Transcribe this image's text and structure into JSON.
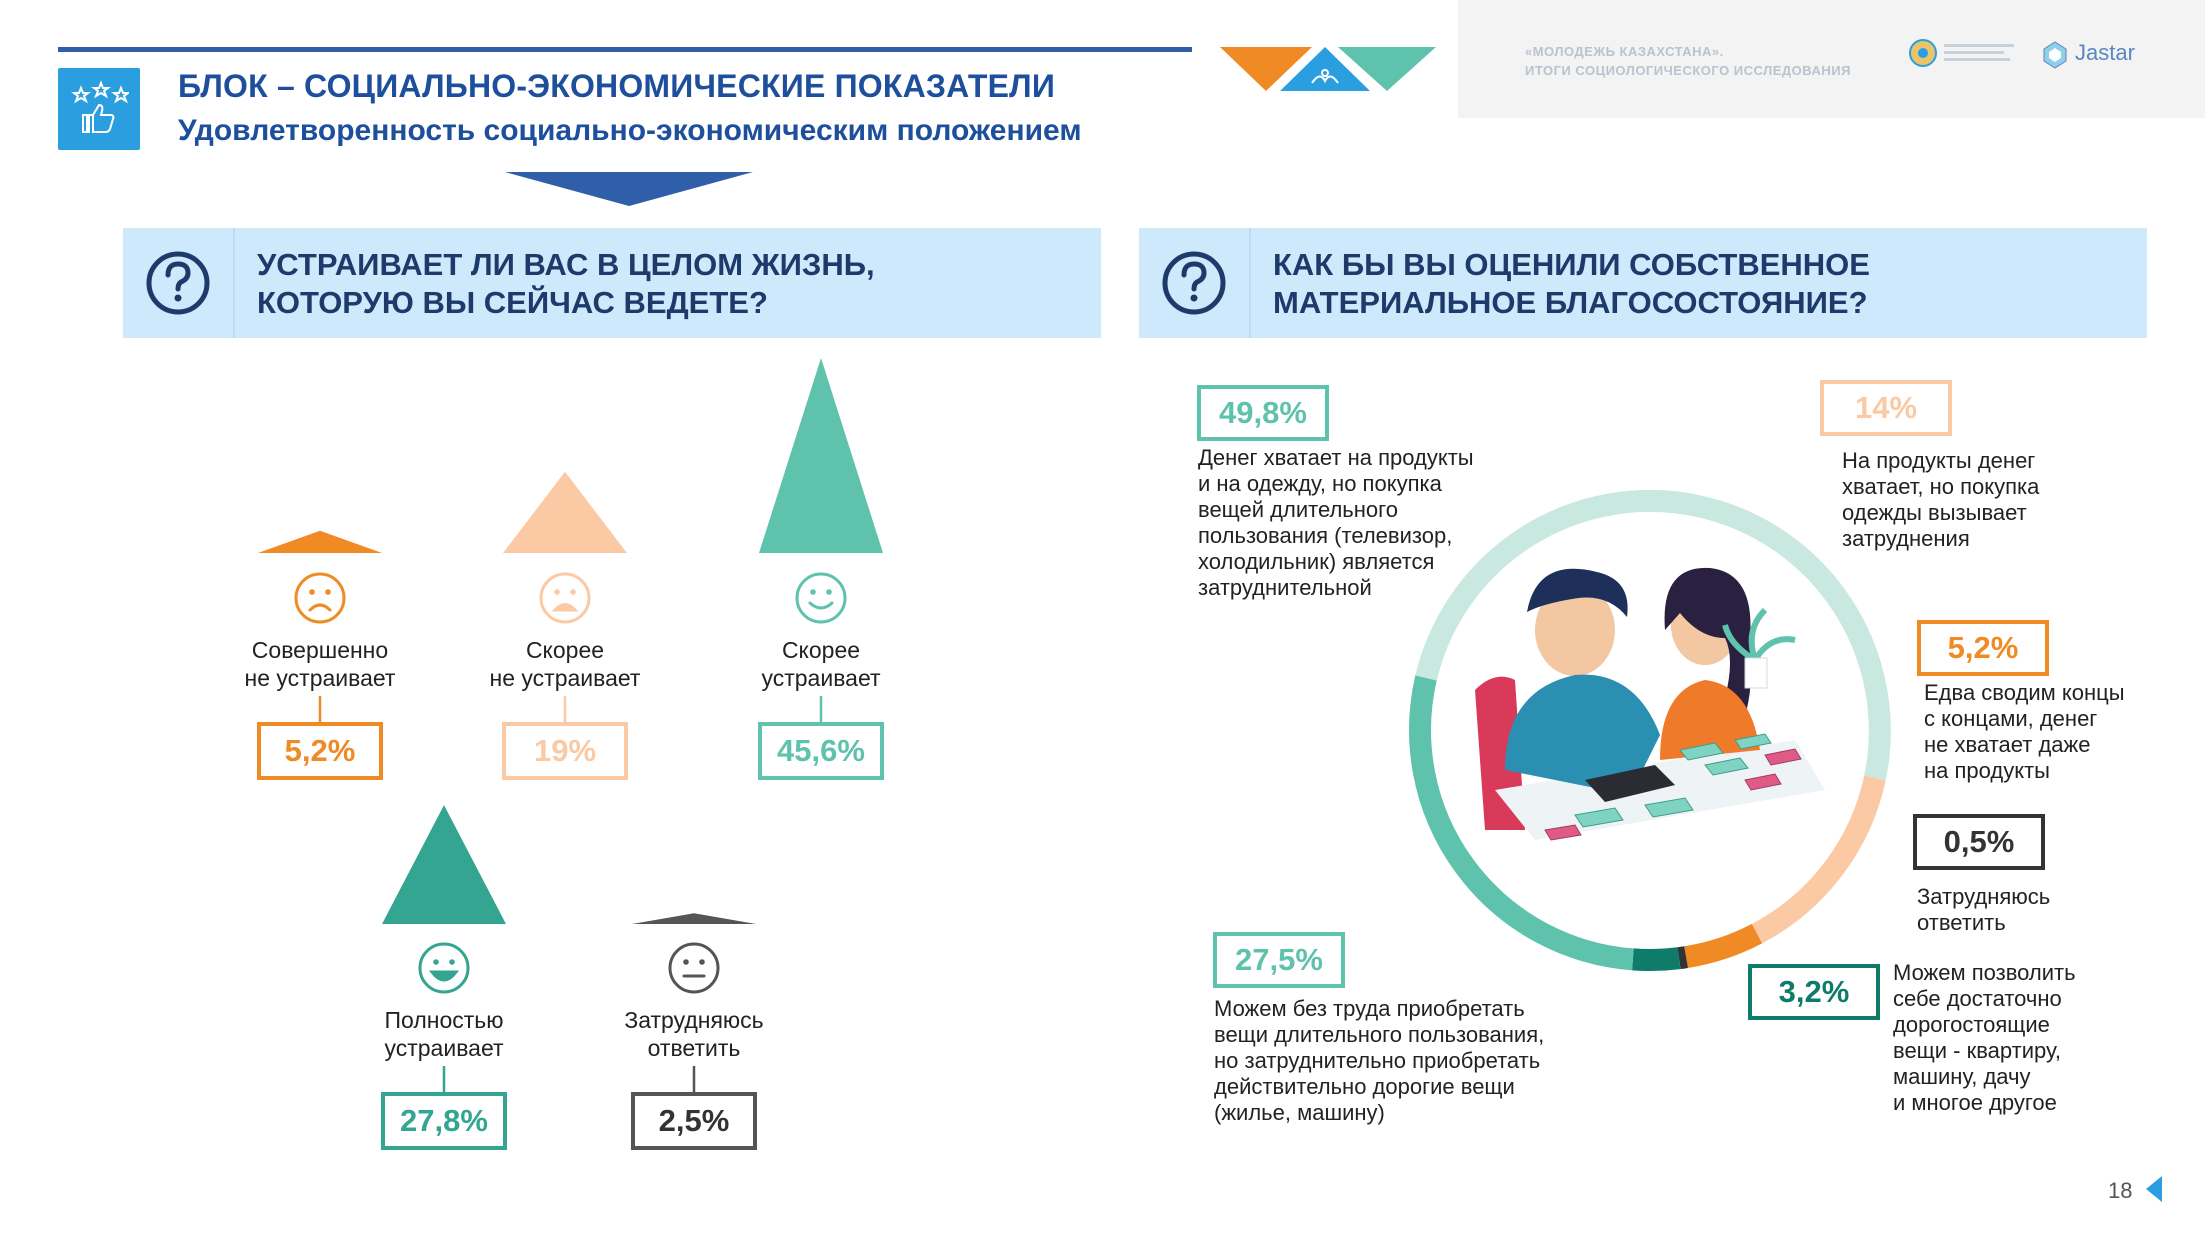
{
  "header": {
    "title": "БЛОК – СОЦИАЛЬНО-ЭКОНОМИЧЕСКИЕ ПОКАЗАТЕЛИ",
    "subtitle": "Удовлетворенность социально-экономическим положением",
    "org_line1": "«МОЛОДЕЖЬ КАЗАХСТАНА».",
    "org_line2": "ИТОГИ СОЦИОЛОГИЧЕСКОГО ИССЛЕДОВАНИЯ",
    "brand": "Jastar"
  },
  "colors": {
    "orange": "#f08a24",
    "peach": "#fbc9a3",
    "teal_light": "#5fc2ad",
    "teal_dark": "#33a590",
    "teal_pale": "#c9e8df",
    "teal_deep": "#0e7c68",
    "grey": "#555555",
    "navy": "#1d4f9c"
  },
  "left_question": {
    "line1": "УСТРАИВАЕТ ЛИ ВАС В ЦЕЛОМ ЖИЗНЬ,",
    "line2": "КОТОРУЮ ВЫ СЕЙЧАС ВЕДЕТЕ?"
  },
  "right_question": {
    "line1": "КАК БЫ ВЫ ОЦЕНИЛИ СОБСТВЕННОЕ",
    "line2": "МАТЕРИАЛЬНОЕ БЛАГОСОСТОЯНИЕ?"
  },
  "chart_data": [
    {
      "type": "bar",
      "categories": [
        "Совершенно не устраивает",
        "Скорее не устраивает",
        "Скорее устраивает",
        "Полностью устраивает",
        "Затрудняюсь ответить"
      ],
      "values": [
        5.2,
        19,
        45.6,
        27.8,
        2.5
      ],
      "value_labels": [
        "5,2%",
        "19%",
        "45,6%",
        "27,8%",
        "2,5%"
      ],
      "label_lines": [
        [
          "Совершенно",
          "не устраивает"
        ],
        [
          "Скорее",
          "не устраивает"
        ],
        [
          "Скорее",
          "устраивает"
        ],
        [
          "Полностью",
          "устраивает"
        ],
        [
          "Затрудняюсь",
          "ответить"
        ]
      ],
      "colors": [
        "#f08a24",
        "#fbc9a3",
        "#5fc2ad",
        "#33a590",
        "#555555"
      ],
      "icons": [
        "frown-face-icon",
        "worried-face-icon",
        "smile-face-icon",
        "grin-face-icon",
        "neutral-face-icon"
      ]
    },
    {
      "type": "pie",
      "categories": [
        "Денег хватает на продукты и на одежду, но покупка вещей длительного пользования (телевизор, холодильник) является затруднительной",
        "На продукты денег хватает, но покупка одежды вызывает затруднения",
        "Едва сводим концы с концами, денег не хватает даже на продукты",
        "Затрудняюсь ответить",
        "Можем позволить себе достаточно дорогостоящие вещи - квартиру, машину, дачу и многое другое",
        "Можем без труда приобретать вещи длительного пользования, но затруднительно приобретать действительно дорогие вещи (жилье, машину)"
      ],
      "values": [
        49.8,
        14,
        5.2,
        0.5,
        3.2,
        27.5
      ],
      "value_labels": [
        "49,8%",
        "14%",
        "5,2%",
        "0,5%",
        "3,2%",
        "27,5%"
      ],
      "colors": [
        "#c9e8df",
        "#fbc9a3",
        "#f08a24",
        "#333333",
        "#0e7c68",
        "#5fc2ad"
      ],
      "desc_lines": [
        [
          "Денег хватает на продукты",
          "и на одежду, но покупка",
          "вещей длительного",
          "пользования (телевизор,",
          "холодильник) является",
          "затруднительной"
        ],
        [
          "На продукты денег",
          "хватает, но покупка",
          "одежды вызывает",
          "затруднения"
        ],
        [
          "Едва сводим концы",
          "с концами, денег",
          "не хватает даже",
          "на продукты"
        ],
        [
          "Затрудняюсь",
          "ответить"
        ],
        [
          "Можем позволить",
          "себе достаточно",
          "дорогостоящие",
          "вещи - квартиру,",
          "машину, дачу",
          "и многое другое"
        ],
        [
          "Можем без труда приобретать",
          "вещи длительного пользования,",
          "но затруднительно приобретать",
          "действительно дорогие вещи",
          "(жилье, машину)"
        ]
      ]
    }
  ],
  "page_number": "18"
}
